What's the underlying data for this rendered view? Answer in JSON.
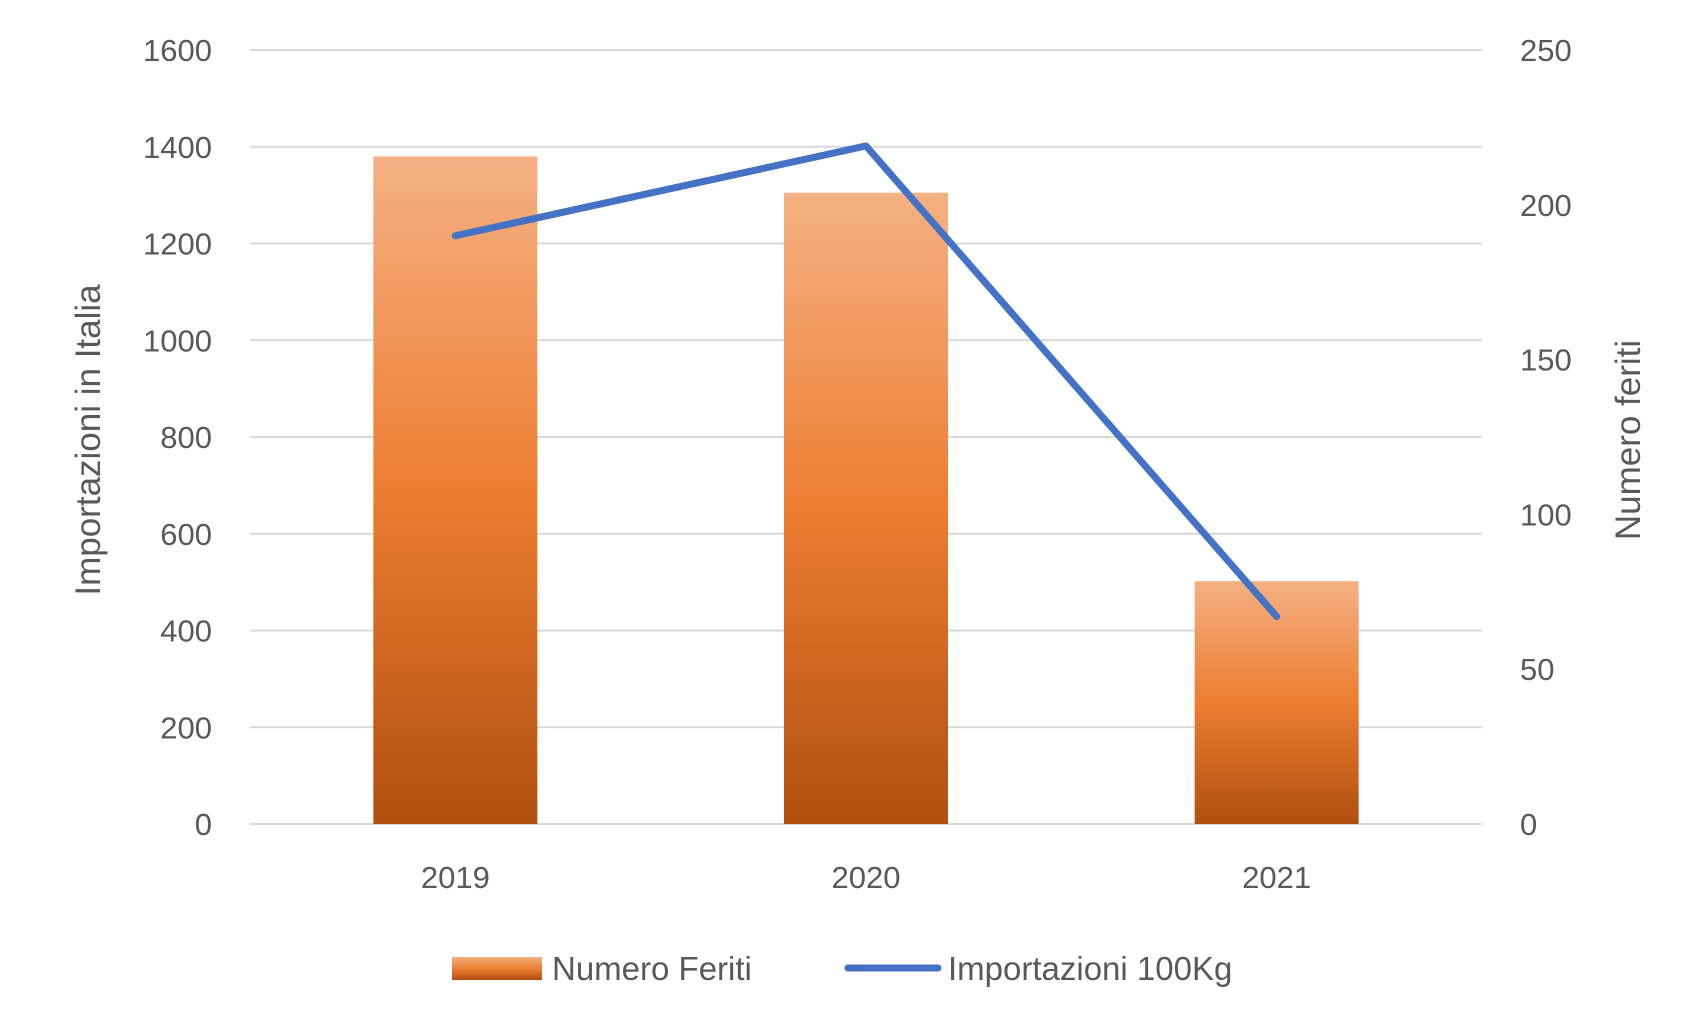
{
  "chart_data": {
    "type": "bar",
    "categories": [
      "2019",
      "2020",
      "2021"
    ],
    "series": [
      {
        "name": "Numero Feriti",
        "kind": "bar",
        "axis": "left",
        "values": [
          1380,
          1305,
          502
        ],
        "color": "#ED7D31"
      },
      {
        "name": "Importazioni 100Kg",
        "kind": "line",
        "axis": "right",
        "values": [
          190,
          219,
          67
        ],
        "color": "#4472C4"
      }
    ],
    "title": "",
    "xlabel": "",
    "ylabel": "Importazioni in Italia",
    "y2label": "Numero feriti",
    "ylim": [
      0,
      1600
    ],
    "y2lim": [
      0,
      250
    ],
    "yticks": [
      "0",
      "200",
      "400",
      "600",
      "800",
      "1000",
      "1200",
      "1400",
      "1600"
    ],
    "y2ticks": [
      "0",
      "50",
      "100",
      "150",
      "200",
      "250"
    ],
    "grid": true,
    "legend": "bottom",
    "legend_entries": [
      "Numero Feriti",
      "Importazioni 100Kg"
    ]
  }
}
